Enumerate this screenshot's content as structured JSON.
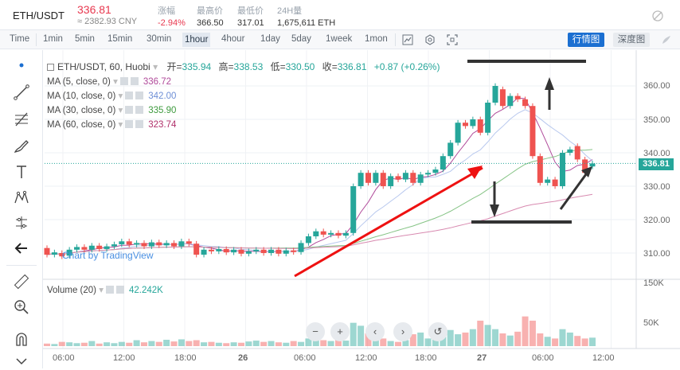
{
  "header": {
    "pair": "ETH/USDT",
    "price": "336.81",
    "price_cny": "≈ 2382.93 CNY",
    "stats": [
      {
        "label": "涨幅",
        "value": "-2.94%"
      },
      {
        "label": "最高价",
        "value": "366.50"
      },
      {
        "label": "最低价",
        "value": "317.01"
      },
      {
        "label": "24H量",
        "value": "1,675,611 ETH"
      }
    ]
  },
  "toolbar": {
    "timeframes": [
      "Time",
      "1min",
      "5min",
      "15min",
      "30min",
      "1hour",
      "4hour",
      "1day",
      "5day",
      "1week",
      "1mon"
    ],
    "active_timeframe": "1hour",
    "view_buttons": [
      "行情图",
      "深度图"
    ]
  },
  "chart": {
    "ohlc_title": "ETH/USDT, 60, Huobi",
    "ohlc": {
      "open_label": "开",
      "open": "335.94",
      "high_label": "高",
      "high": "338.53",
      "low_label": "低",
      "low": "330.50",
      "close_label": "收",
      "close": "336.81",
      "change": "+0.87 (+0.26%)"
    },
    "ma_legend": [
      {
        "name": "MA (5, close, 0)",
        "value": "336.72",
        "color": "#b04a9a"
      },
      {
        "name": "MA (10, close, 0)",
        "value": "342.00",
        "color": "#6e8fd6"
      },
      {
        "name": "MA (30, close, 0)",
        "value": "335.90",
        "color": "#3f9b3f"
      },
      {
        "name": "MA (60, close, 0)",
        "value": "323.74",
        "color": "#b0306a"
      }
    ],
    "volume_legend": {
      "name": "Volume (20)",
      "value": "42.242K"
    },
    "price_axis": [
      "360.00",
      "350.00",
      "340.00",
      "330.00",
      "320.00",
      "310.00"
    ],
    "current_price_tag": "336.81",
    "volume_axis": [
      "150K",
      "50K"
    ],
    "time_axis": [
      "06:00",
      "12:00",
      "18:00",
      "26",
      "06:00",
      "12:00",
      "18:00",
      "27",
      "06:00",
      "12:00"
    ],
    "watermark": "Chart by TradingView",
    "nav_buttons": [
      "−",
      "+",
      "‹",
      "›",
      "↺"
    ],
    "up_color": "#26a69a",
    "down_color": "#ef5350"
  },
  "chart_data": {
    "type": "candlestick",
    "title": "ETH/USDT, 60, Huobi",
    "ylim": [
      306,
      366
    ],
    "candles": [
      {
        "o": 311.5,
        "c": 309.5
      },
      {
        "o": 309.5,
        "c": 310.2
      },
      {
        "o": 310.0,
        "c": 309.0
      },
      {
        "o": 309.2,
        "c": 311.0
      },
      {
        "o": 311.0,
        "c": 311.8
      },
      {
        "o": 311.8,
        "c": 311.0
      },
      {
        "o": 311.0,
        "c": 312.2
      },
      {
        "o": 312.2,
        "c": 311.2
      },
      {
        "o": 311.2,
        "c": 312.0
      },
      {
        "o": 312.0,
        "c": 312.6
      },
      {
        "o": 312.6,
        "c": 313.5
      },
      {
        "o": 313.5,
        "c": 312.5
      },
      {
        "o": 312.5,
        "c": 313.0
      },
      {
        "o": 313.0,
        "c": 312.0
      },
      {
        "o": 312.0,
        "c": 313.2
      },
      {
        "o": 313.2,
        "c": 312.3
      },
      {
        "o": 312.3,
        "c": 313.0
      },
      {
        "o": 313.0,
        "c": 312.0
      },
      {
        "o": 312.0,
        "c": 313.5
      },
      {
        "o": 313.5,
        "c": 312.8
      },
      {
        "o": 312.8,
        "c": 309.5
      },
      {
        "o": 309.5,
        "c": 311.0
      },
      {
        "o": 311.0,
        "c": 310.5
      },
      {
        "o": 310.5,
        "c": 311.2
      },
      {
        "o": 311.2,
        "c": 310.2
      },
      {
        "o": 310.2,
        "c": 311.0
      },
      {
        "o": 311.0,
        "c": 309.8
      },
      {
        "o": 309.8,
        "c": 310.5
      },
      {
        "o": 310.5,
        "c": 311.0
      },
      {
        "o": 311.0,
        "c": 310.0
      },
      {
        "o": 310.0,
        "c": 311.0
      },
      {
        "o": 311.0,
        "c": 309.8
      },
      {
        "o": 309.8,
        "c": 310.8
      },
      {
        "o": 310.8,
        "c": 310.3
      },
      {
        "o": 310.3,
        "c": 313.0
      },
      {
        "o": 313.0,
        "c": 315.0
      },
      {
        "o": 315.0,
        "c": 316.5
      },
      {
        "o": 316.5,
        "c": 315.5
      },
      {
        "o": 315.5,
        "c": 316.0
      },
      {
        "o": 316.0,
        "c": 315.2
      },
      {
        "o": 315.2,
        "c": 316.0
      },
      {
        "o": 316.0,
        "c": 330.0
      },
      {
        "o": 330.0,
        "c": 334.0
      },
      {
        "o": 334.0,
        "c": 331.0
      },
      {
        "o": 331.0,
        "c": 334.0
      },
      {
        "o": 334.0,
        "c": 330.0
      },
      {
        "o": 330.0,
        "c": 333.0
      },
      {
        "o": 333.0,
        "c": 332.0
      },
      {
        "o": 332.0,
        "c": 334.0
      },
      {
        "o": 334.0,
        "c": 331.0
      },
      {
        "o": 331.0,
        "c": 333.5
      },
      {
        "o": 333.5,
        "c": 334.0
      },
      {
        "o": 334.0,
        "c": 335.0
      },
      {
        "o": 335.0,
        "c": 339.0
      },
      {
        "o": 339.0,
        "c": 343.0
      },
      {
        "o": 343.0,
        "c": 349.0
      },
      {
        "o": 349.0,
        "c": 348.0
      },
      {
        "o": 348.0,
        "c": 350.0
      },
      {
        "o": 350.0,
        "c": 346.0
      },
      {
        "o": 346.0,
        "c": 355.0
      },
      {
        "o": 355.0,
        "c": 360.0
      },
      {
        "o": 359.0,
        "c": 354.0
      },
      {
        "o": 354.0,
        "c": 357.0
      },
      {
        "o": 357.0,
        "c": 356.0
      },
      {
        "o": 356.0,
        "c": 354.0
      },
      {
        "o": 354.0,
        "c": 339.0
      },
      {
        "o": 339.0,
        "c": 331.0
      },
      {
        "o": 331.0,
        "c": 332.0
      },
      {
        "o": 332.0,
        "c": 330.0
      },
      {
        "o": 330.0,
        "c": 340.0
      },
      {
        "o": 340.0,
        "c": 341.0
      },
      {
        "o": 342.0,
        "c": 338.0
      },
      {
        "o": 338.0,
        "c": 334.0
      },
      {
        "o": 335.9,
        "c": 336.8
      }
    ],
    "volume": [
      6,
      5,
      10,
      9,
      7,
      8,
      12,
      6,
      9,
      7,
      10,
      8,
      14,
      9,
      12,
      10,
      15,
      11,
      16,
      12,
      14,
      9,
      10,
      8,
      7,
      9,
      8,
      11,
      13,
      10,
      12,
      9,
      8,
      12,
      10,
      18,
      20,
      14,
      12,
      15,
      13,
      55,
      48,
      30,
      22,
      18,
      12,
      10,
      14,
      28,
      32,
      18,
      16,
      30,
      38,
      28,
      32,
      40,
      60,
      50,
      40,
      30,
      25,
      34,
      70,
      60,
      30,
      22,
      18,
      40,
      32,
      24,
      18,
      20
    ],
    "ma_lines": [
      {
        "name": "MA (5, close, 0)",
        "last": 336.72
      },
      {
        "name": "MA (10, close, 0)",
        "last": 342.0
      },
      {
        "name": "MA (30, close, 0)",
        "last": 335.9
      },
      {
        "name": "MA (60, close, 0)",
        "last": 323.74
      }
    ]
  }
}
